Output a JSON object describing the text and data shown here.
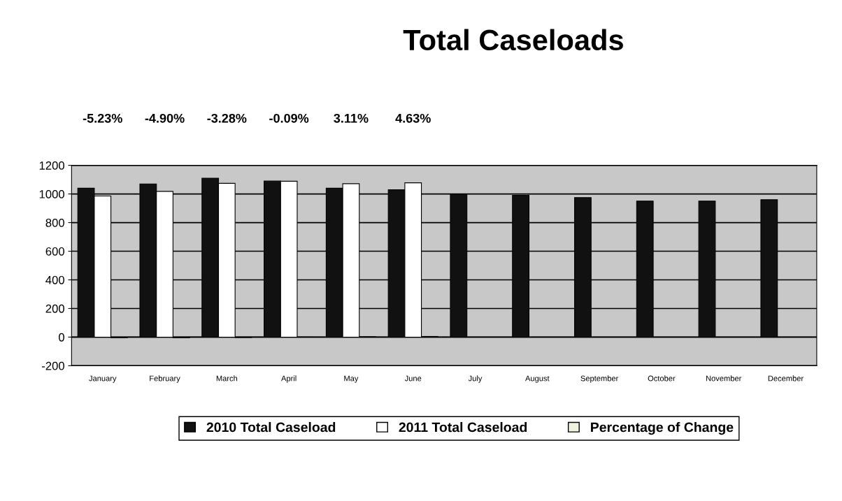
{
  "chart_data": {
    "type": "bar",
    "title": "Total Caseloads",
    "categories": [
      "January",
      "February",
      "March",
      "April",
      "May",
      "June",
      "July",
      "August",
      "September",
      "October",
      "November",
      "December"
    ],
    "series": [
      {
        "name": "2010 Total Caseload",
        "color": "#111111",
        "values": [
          1040,
          1070,
          1110,
          1090,
          1040,
          1030,
          1000,
          990,
          975,
          950,
          950,
          960
        ]
      },
      {
        "name": "2011 Total Caseload",
        "color": "#ffffff",
        "values": [
          986,
          1018,
          1074,
          1089,
          1072,
          1078,
          null,
          null,
          null,
          null,
          null,
          null
        ]
      },
      {
        "name": "Percentage of Change",
        "color": "#f2f2e0",
        "values": [
          -5.23,
          -4.9,
          -3.28,
          -0.09,
          3.11,
          4.63,
          null,
          null,
          null,
          null,
          null,
          null
        ],
        "value_labels": [
          "-5.23%",
          "-4.90%",
          "-3.28%",
          "-0.09%",
          "3.11%",
          "4.63%",
          null,
          null,
          null,
          null,
          null,
          null
        ]
      }
    ],
    "ylim": [
      -200,
      1200
    ],
    "yticks": [
      -200,
      0,
      200,
      400,
      600,
      800,
      1000,
      1200
    ],
    "grid": "y",
    "legend": "bottom"
  }
}
